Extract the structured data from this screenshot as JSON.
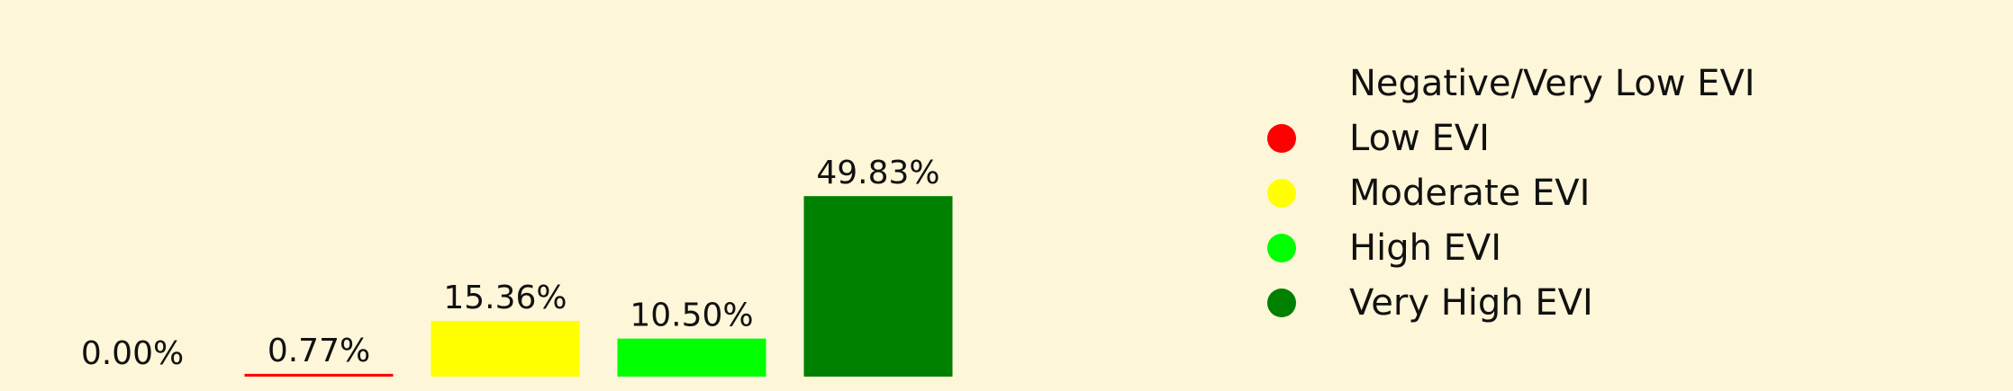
{
  "chart_data": {
    "type": "bar",
    "categories": [
      "Negative/Very Low EVI",
      "Low EVI",
      "Moderate EVI",
      "High EVI",
      "Very High EVI"
    ],
    "values": [
      0.0,
      0.77,
      15.36,
      10.5,
      49.83
    ],
    "value_labels": [
      "0.00%",
      "0.77%",
      "15.36%",
      "10.50%",
      "49.83%"
    ],
    "colors": [
      "#fdf6d8",
      "#ff0000",
      "#ffff00",
      "#00ff00",
      "#008000"
    ],
    "legend": {
      "placement": "right",
      "entries": [
        {
          "label": "Negative/Very Low EVI",
          "color": "#fdf6d8"
        },
        {
          "label": "Low EVI",
          "color": "#ff0000"
        },
        {
          "label": "Moderate EVI",
          "color": "#ffff00"
        },
        {
          "label": "High EVI",
          "color": "#00ff00"
        },
        {
          "label": "Very High EVI",
          "color": "#008000"
        }
      ]
    },
    "title": "",
    "xlabel": "",
    "ylabel": "",
    "ylim": [
      0,
      100
    ],
    "grid": false,
    "axes_visible": false,
    "background": "#fdf6d8"
  }
}
